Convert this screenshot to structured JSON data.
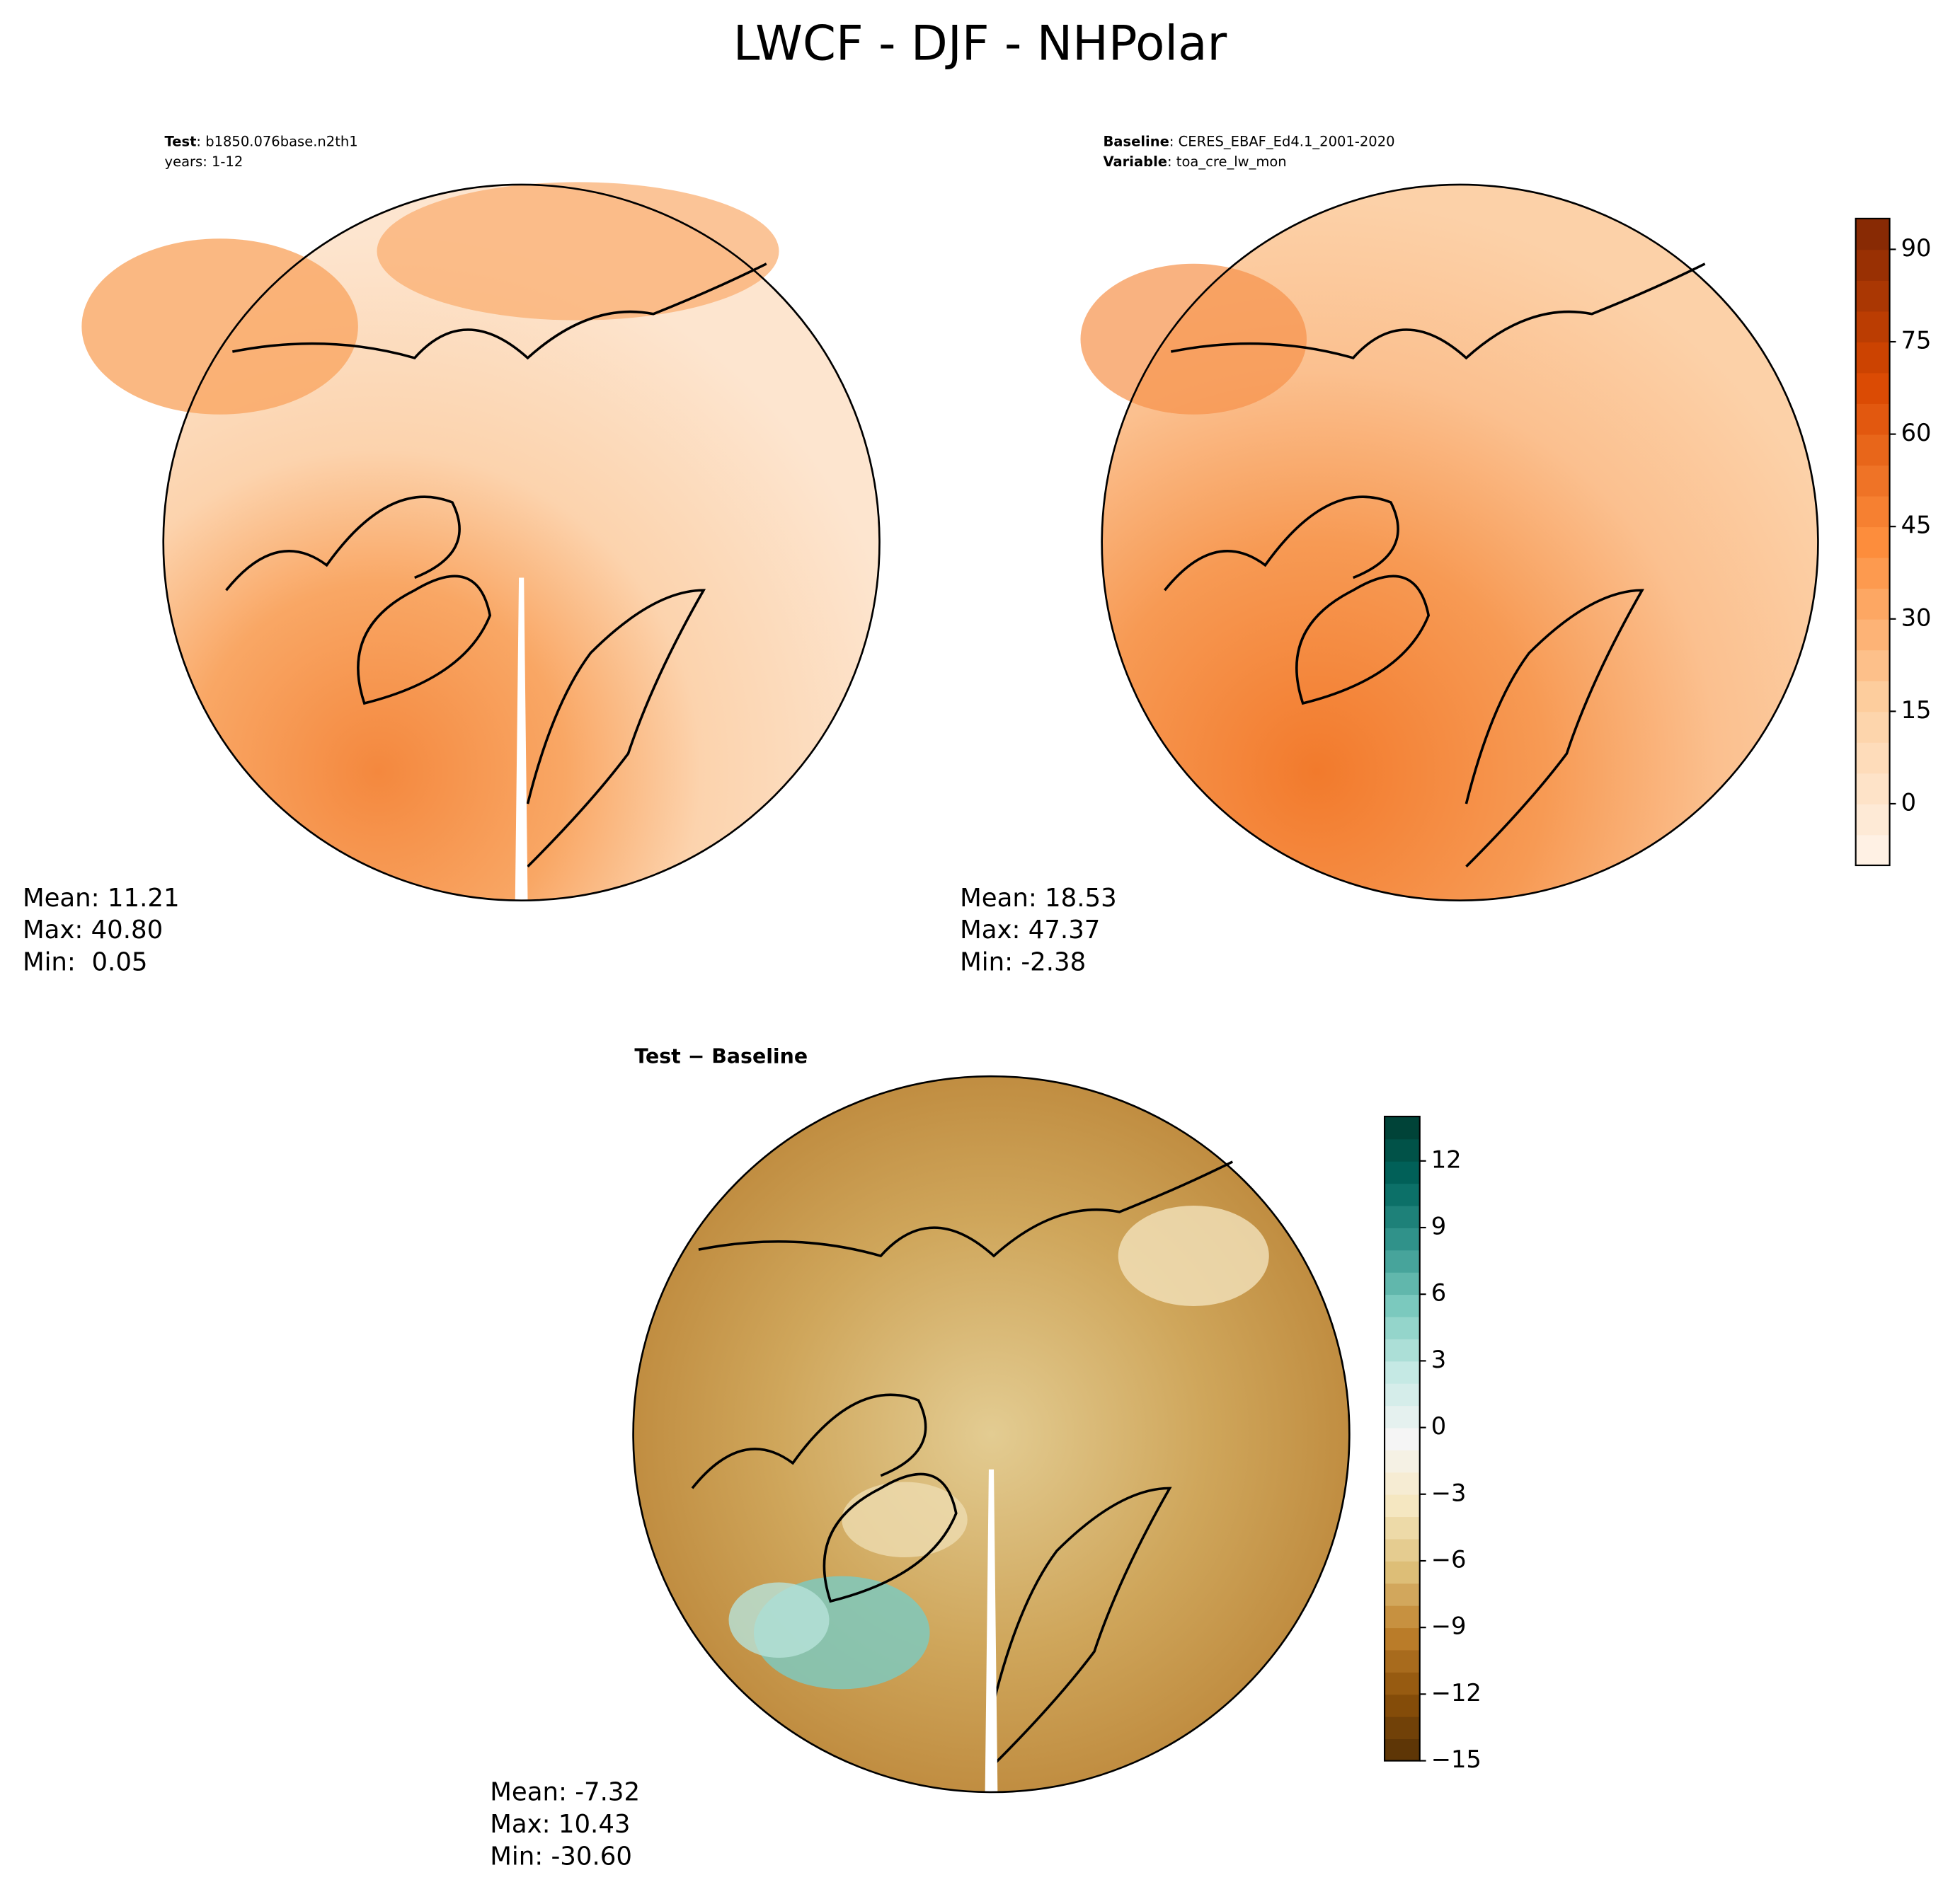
{
  "title": "LWCF - DJF - NHPolar",
  "panels": [
    {
      "header": [
        {
          "key": "Test",
          "value": ": b1850.076base.n2th1"
        },
        {
          "value": "years: 1-12"
        }
      ],
      "stats": [
        "Mean: 11.21",
        "Max: 40.80",
        "Min:  0.05"
      ]
    },
    {
      "header": [
        {
          "key": "Baseline",
          "value": ": CERES_EBAF_Ed4.1_2001-2020"
        },
        {
          "key": "Variable",
          "value": ": toa_cre_lw_mon"
        }
      ],
      "stats": [
        "Mean: 18.53",
        "Max: 47.37",
        "Min: -2.38"
      ]
    },
    {
      "header": [
        {
          "key": "Test − Baseline"
        }
      ],
      "stats": [
        "Mean: -7.32",
        "Max: 10.43",
        "Min: -30.60"
      ]
    }
  ],
  "colorbars": [
    {
      "lim": [
        -10,
        95
      ],
      "levels": 21,
      "colors": [
        "#fff5eb",
        "#fdd0a2",
        "#fd8d3c",
        "#d94801",
        "#7f2704"
      ],
      "ticks": [
        0,
        15,
        30,
        45,
        60,
        75,
        90
      ]
    },
    {
      "lim": [
        -15,
        14
      ],
      "levels": 29,
      "colors": [
        "#543005",
        "#8c510a",
        "#bf812d",
        "#dfc27d",
        "#f6e8c3",
        "#f5f5f5",
        "#c7eae5",
        "#80cdc1",
        "#35978f",
        "#01665e",
        "#003c30"
      ],
      "ticks": [
        {
          "value": -15,
          "label": "−15"
        },
        {
          "value": -12,
          "label": "−12"
        },
        {
          "value": -9,
          "label": "−9"
        },
        {
          "value": -6,
          "label": "−6"
        },
        {
          "value": -3,
          "label": "−3"
        },
        0,
        3,
        6,
        9,
        12
      ]
    }
  ]
}
